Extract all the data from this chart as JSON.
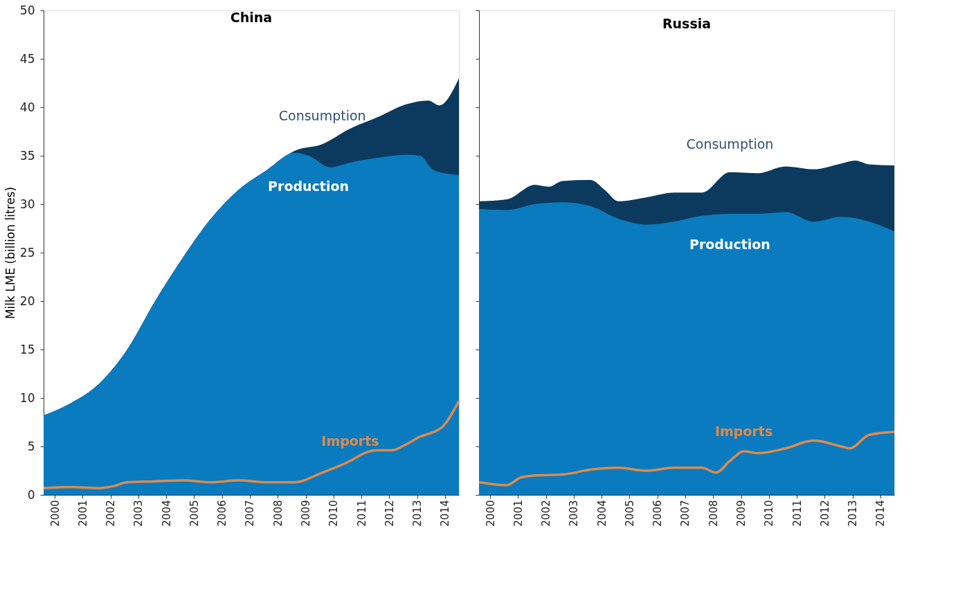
{
  "chart_data": [
    {
      "type": "area",
      "title": "China",
      "ylabel": "Milk LME (billion litres)",
      "xlim": [
        2000,
        2014.9
      ],
      "ylim": [
        0,
        50
      ],
      "yticks": [
        0,
        5,
        10,
        15,
        20,
        25,
        30,
        35,
        40,
        45,
        50
      ],
      "xticks": [
        {
          "value": 2000.4,
          "label": "2000"
        },
        {
          "value": 2001.4,
          "label": "2001"
        },
        {
          "value": 2002.4,
          "label": "2002"
        },
        {
          "value": 2003.4,
          "label": "2003"
        },
        {
          "value": 2004.4,
          "label": "2004"
        },
        {
          "value": 2005.4,
          "label": "2005"
        },
        {
          "value": 2006.4,
          "label": "2006"
        },
        {
          "value": 2007.4,
          "label": "2007"
        },
        {
          "value": 2008.4,
          "label": "2008"
        },
        {
          "value": 2009.4,
          "label": "2009"
        },
        {
          "value": 2010.4,
          "label": "2010"
        },
        {
          "value": 2011.4,
          "label": "2011"
        },
        {
          "value": 2012.4,
          "label": "2012"
        },
        {
          "value": 2013.4,
          "label": "2013"
        },
        {
          "value": 2014.4,
          "label": "2014"
        }
      ],
      "grid": false,
      "series": [
        {
          "name": "Consumption",
          "type": "area",
          "color": "#0b3a5e",
          "x": [
            2000,
            2001,
            2002,
            2003,
            2004,
            2005,
            2006,
            2007,
            2008,
            2009,
            2010,
            2011,
            2012,
            2013,
            2013.8,
            2014.2,
            2014.9
          ],
          "values": [
            8.2,
            9.5,
            11.5,
            15,
            20,
            24.5,
            28.5,
            31.5,
            33.5,
            35.5,
            36.2,
            37.8,
            39,
            40.3,
            40.7,
            40.2,
            43
          ]
        },
        {
          "name": "Production",
          "type": "area",
          "color": "#0a7bbf",
          "x": [
            2000,
            2001,
            2002,
            2003,
            2004,
            2005,
            2006,
            2007,
            2008,
            2009,
            2009.5,
            2010.3,
            2011,
            2012,
            2013,
            2013.5,
            2014,
            2014.9
          ],
          "values": [
            8.2,
            9.5,
            11.5,
            15,
            20,
            24.5,
            28.5,
            31.5,
            33.5,
            35.3,
            35,
            33.8,
            34.3,
            34.8,
            35.1,
            35,
            33.5,
            33
          ]
        },
        {
          "name": "Imports",
          "type": "line",
          "color": "#e08a4a",
          "x": [
            2000,
            2001,
            2002,
            2002.5,
            2003,
            2004,
            2005,
            2006,
            2007,
            2008,
            2009,
            2010,
            2011,
            2011.5,
            2012,
            2012.5,
            2013,
            2013.5,
            2014,
            2014.3,
            2014.9
          ],
          "values": [
            0.7,
            0.8,
            0.7,
            0.9,
            1.3,
            1.4,
            1.5,
            1.3,
            1.5,
            1.3,
            1.3,
            2.3,
            3.5,
            4.3,
            4.6,
            4.6,
            5.2,
            6,
            6.5,
            7,
            9.7
          ]
        }
      ]
    },
    {
      "type": "area",
      "title": "Russia",
      "xlim": [
        2000,
        2014.9
      ],
      "ylim": [
        0,
        50
      ],
      "yticks": [
        0,
        5,
        10,
        15,
        20,
        25,
        30,
        35,
        40,
        45,
        50
      ],
      "tick_labels": "x",
      "xticks": [
        {
          "value": 2000.4,
          "label": "2000"
        },
        {
          "value": 2001.4,
          "label": "2001"
        },
        {
          "value": 2002.4,
          "label": "2002"
        },
        {
          "value": 2003.4,
          "label": "2003"
        },
        {
          "value": 2004.4,
          "label": "2004"
        },
        {
          "value": 2005.4,
          "label": "2005"
        },
        {
          "value": 2006.4,
          "label": "2006"
        },
        {
          "value": 2007.4,
          "label": "2007"
        },
        {
          "value": 2008.4,
          "label": "2008"
        },
        {
          "value": 2009.4,
          "label": "2009"
        },
        {
          "value": 2010.4,
          "label": "2010"
        },
        {
          "value": 2011.4,
          "label": "2011"
        },
        {
          "value": 2012.4,
          "label": "2012"
        },
        {
          "value": 2013.4,
          "label": "2013"
        },
        {
          "value": 2014.4,
          "label": "2014"
        }
      ],
      "grid": false,
      "series": [
        {
          "name": "Consumption",
          "type": "area",
          "color": "#0b3a5e",
          "x": [
            2000,
            2001,
            2002,
            2002.5,
            2003,
            2004,
            2004.5,
            2005,
            2006,
            2007,
            2008,
            2009,
            2010,
            2011,
            2012,
            2013,
            2013.5,
            2014,
            2014.9
          ],
          "values": [
            30.3,
            30.5,
            32,
            31.8,
            32.4,
            32.5,
            31.5,
            30.3,
            30.7,
            31.2,
            31.2,
            33.3,
            33.2,
            33.9,
            33.6,
            34.2,
            34.5,
            34.1,
            34
          ]
        },
        {
          "name": "Production",
          "type": "area",
          "color": "#0a7bbf",
          "x": [
            2000,
            2001,
            2002,
            2003,
            2004,
            2005,
            2006,
            2007,
            2008,
            2009,
            2010,
            2011,
            2012,
            2013,
            2014,
            2014.9
          ],
          "values": [
            29.5,
            29.4,
            30,
            30.2,
            29.8,
            28.5,
            27.9,
            28.2,
            28.8,
            29,
            29,
            29.2,
            28.2,
            28.7,
            28.2,
            27.2
          ]
        },
        {
          "name": "Imports",
          "type": "line",
          "color": "#e08a4a",
          "x": [
            2000,
            2001,
            2001.5,
            2002,
            2003,
            2004,
            2005,
            2006,
            2007,
            2008,
            2008.5,
            2009,
            2009.5,
            2010,
            2011,
            2012,
            2013,
            2013.3,
            2014,
            2014.9
          ],
          "values": [
            1.3,
            1.0,
            1.8,
            2.0,
            2.1,
            2.6,
            2.8,
            2.5,
            2.8,
            2.8,
            2.3,
            3.5,
            4.5,
            4.3,
            4.8,
            5.6,
            5.0,
            4.8,
            6.2,
            6.5
          ]
        }
      ]
    }
  ]
}
